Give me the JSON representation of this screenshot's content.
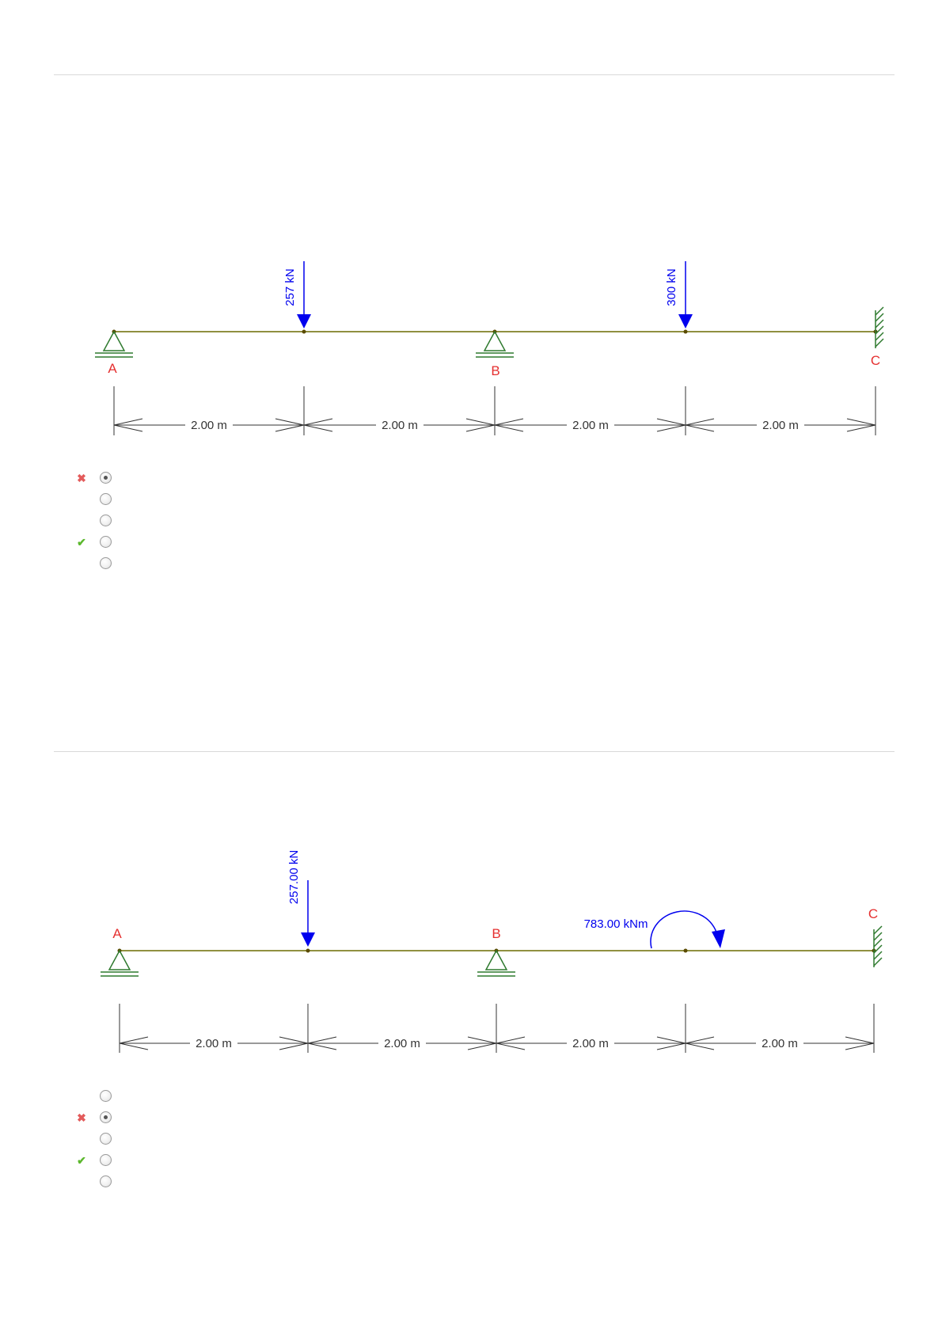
{
  "questions": [
    {
      "beam": {
        "support_labels": [
          "A",
          "B",
          "C"
        ],
        "load_labels": [
          "257 kN",
          "300 kN"
        ],
        "spans": [
          "2.00 m",
          "2.00 m",
          "2.00 m",
          "2.00 m"
        ]
      },
      "options": [
        {
          "selected": true,
          "mark": "wrong"
        },
        {
          "selected": false,
          "mark": ""
        },
        {
          "selected": false,
          "mark": ""
        },
        {
          "selected": false,
          "mark": "correct"
        },
        {
          "selected": false,
          "mark": ""
        }
      ]
    },
    {
      "beam": {
        "support_labels": [
          "A",
          "B",
          "C"
        ],
        "load_labels": [
          "257.00 kN"
        ],
        "moment_label": "783.00 kNm",
        "spans": [
          "2.00 m",
          "2.00 m",
          "2.00 m",
          "2.00 m"
        ]
      },
      "options": [
        {
          "selected": false,
          "mark": ""
        },
        {
          "selected": true,
          "mark": "wrong"
        },
        {
          "selected": false,
          "mark": ""
        },
        {
          "selected": false,
          "mark": "correct"
        },
        {
          "selected": false,
          "mark": ""
        }
      ]
    }
  ],
  "colors": {
    "beam": "#6b6b00",
    "support": "#2f7a2f",
    "load": "#0000ee",
    "label": "#e53030",
    "dimension": "#333333"
  },
  "icons": {
    "wrong": "cross-icon",
    "correct": "check-icon",
    "fixed_support": "fixed-support-icon",
    "pin_support": "pin-support-icon"
  }
}
